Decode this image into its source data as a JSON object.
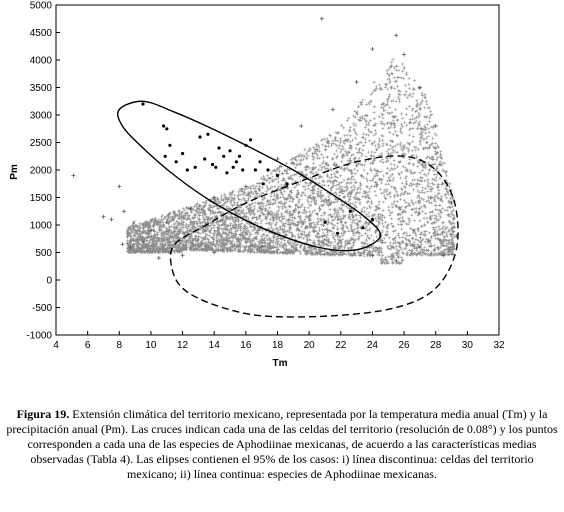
{
  "chart_data": {
    "type": "scatter",
    "xlabel": "Tm",
    "ylabel": "Pm",
    "xlim": [
      4,
      32
    ],
    "ylim": [
      -1000,
      5000
    ],
    "xticks": [
      "4",
      "6",
      "8",
      "10",
      "12",
      "14",
      "16",
      "18",
      "20",
      "22",
      "24",
      "26",
      "28",
      "30",
      "32"
    ],
    "yticks": [
      "5000",
      "4500",
      "4000",
      "3500",
      "3000",
      "2500",
      "2000",
      "1500",
      "1000",
      "500",
      "0",
      "-500",
      "-1000"
    ],
    "grid": false,
    "legend": "none",
    "series": [
      {
        "marker": "plus",
        "color": "#555555",
        "points": [
          [
            5.1,
            1900
          ],
          [
            20.8,
            4750
          ],
          [
            7.5,
            1100
          ],
          [
            7.0,
            1150
          ],
          [
            8.0,
            1700
          ],
          [
            8.3,
            1250
          ],
          [
            8.2,
            650
          ],
          [
            8.7,
            600
          ],
          [
            9.5,
            700
          ],
          [
            10.0,
            900
          ],
          [
            11.0,
            1050
          ],
          [
            12.5,
            1300
          ],
          [
            14.0,
            1500
          ],
          [
            16.0,
            1700
          ],
          [
            18.0,
            2200
          ],
          [
            19.5,
            2800
          ],
          [
            21.5,
            3100
          ],
          [
            23.0,
            3600
          ],
          [
            24.0,
            4200
          ],
          [
            25.5,
            4450
          ],
          [
            26.0,
            4100
          ],
          [
            27.0,
            3500
          ],
          [
            28.0,
            2800
          ],
          [
            29.0,
            1400
          ],
          [
            29.3,
            800
          ],
          [
            28.5,
            450
          ],
          [
            27.0,
            600
          ],
          [
            25.5,
            350
          ],
          [
            24.0,
            450
          ],
          [
            22.0,
            500
          ],
          [
            20.0,
            600
          ],
          [
            17.0,
            600
          ],
          [
            14.0,
            500
          ],
          [
            12.0,
            450
          ],
          [
            10.5,
            400
          ]
        ]
      },
      {
        "marker": "dot",
        "color": "#000000",
        "points": [
          [
            9.5,
            3200
          ],
          [
            10.8,
            2800
          ],
          [
            11.0,
            2750
          ],
          [
            11.2,
            2450
          ],
          [
            10.9,
            2250
          ],
          [
            11.6,
            2150
          ],
          [
            12.0,
            2300
          ],
          [
            12.3,
            2000
          ],
          [
            12.8,
            2050
          ],
          [
            13.1,
            2600
          ],
          [
            13.4,
            2200
          ],
          [
            13.6,
            2650
          ],
          [
            13.9,
            2100
          ],
          [
            14.1,
            2050
          ],
          [
            14.3,
            2400
          ],
          [
            14.6,
            2250
          ],
          [
            14.8,
            1950
          ],
          [
            15.0,
            2350
          ],
          [
            15.2,
            2050
          ],
          [
            15.4,
            2150
          ],
          [
            15.6,
            2250
          ],
          [
            15.8,
            2000
          ],
          [
            16.0,
            2450
          ],
          [
            16.3,
            2550
          ],
          [
            16.6,
            2000
          ],
          [
            16.9,
            2150
          ],
          [
            17.1,
            1750
          ],
          [
            17.4,
            2000
          ],
          [
            18.0,
            1900
          ],
          [
            18.6,
            1750
          ],
          [
            21.0,
            1050
          ],
          [
            22.6,
            1250
          ],
          [
            23.4,
            950
          ],
          [
            24.0,
            1100
          ],
          [
            21.8,
            850
          ]
        ]
      }
    ],
    "ellipses": [
      {
        "style": "solid",
        "points": [
          [
            8.0,
            3100
          ],
          [
            9.5,
            3250
          ],
          [
            11.5,
            3050
          ],
          [
            13.5,
            2800
          ],
          [
            16.0,
            2450
          ],
          [
            19.0,
            2000
          ],
          [
            21.5,
            1550
          ],
          [
            23.5,
            1150
          ],
          [
            24.5,
            800
          ],
          [
            23.0,
            550
          ],
          [
            20.5,
            600
          ],
          [
            17.0,
            950
          ],
          [
            14.0,
            1400
          ],
          [
            11.5,
            1900
          ],
          [
            9.5,
            2400
          ],
          [
            8.2,
            2800
          ]
        ]
      },
      {
        "style": "dashed",
        "points": [
          [
            11.5,
            650
          ],
          [
            13.5,
            1000
          ],
          [
            16.0,
            1400
          ],
          [
            19.5,
            1800
          ],
          [
            23.0,
            2150
          ],
          [
            26.0,
            2250
          ],
          [
            28.0,
            2000
          ],
          [
            29.2,
            1400
          ],
          [
            29.3,
            550
          ],
          [
            28.0,
            -150
          ],
          [
            25.5,
            -500
          ],
          [
            21.5,
            -650
          ],
          [
            17.0,
            -650
          ],
          [
            14.0,
            -450
          ],
          [
            12.0,
            -150
          ],
          [
            11.3,
            250
          ]
        ]
      }
    ]
  },
  "caption": {
    "label": "Figura 19.",
    "text": " Extensión climática del territorio mexicano, representada por la temperatura media anual (Tm) y la precipitación anual (Pm). Las cruces indican cada una de las celdas del territorio (resolución de 0.08°) y los puntos corresponden a cada una de las especies de Aphodiinae mexicanas, de acuerdo a las características medias observadas (Tabla 4). Las elipses contienen el 95% de los casos: i) línea discontinua: celdas del territorio mexicano; ii) línea continua: especies de Aphodiinae mexicanas."
  }
}
